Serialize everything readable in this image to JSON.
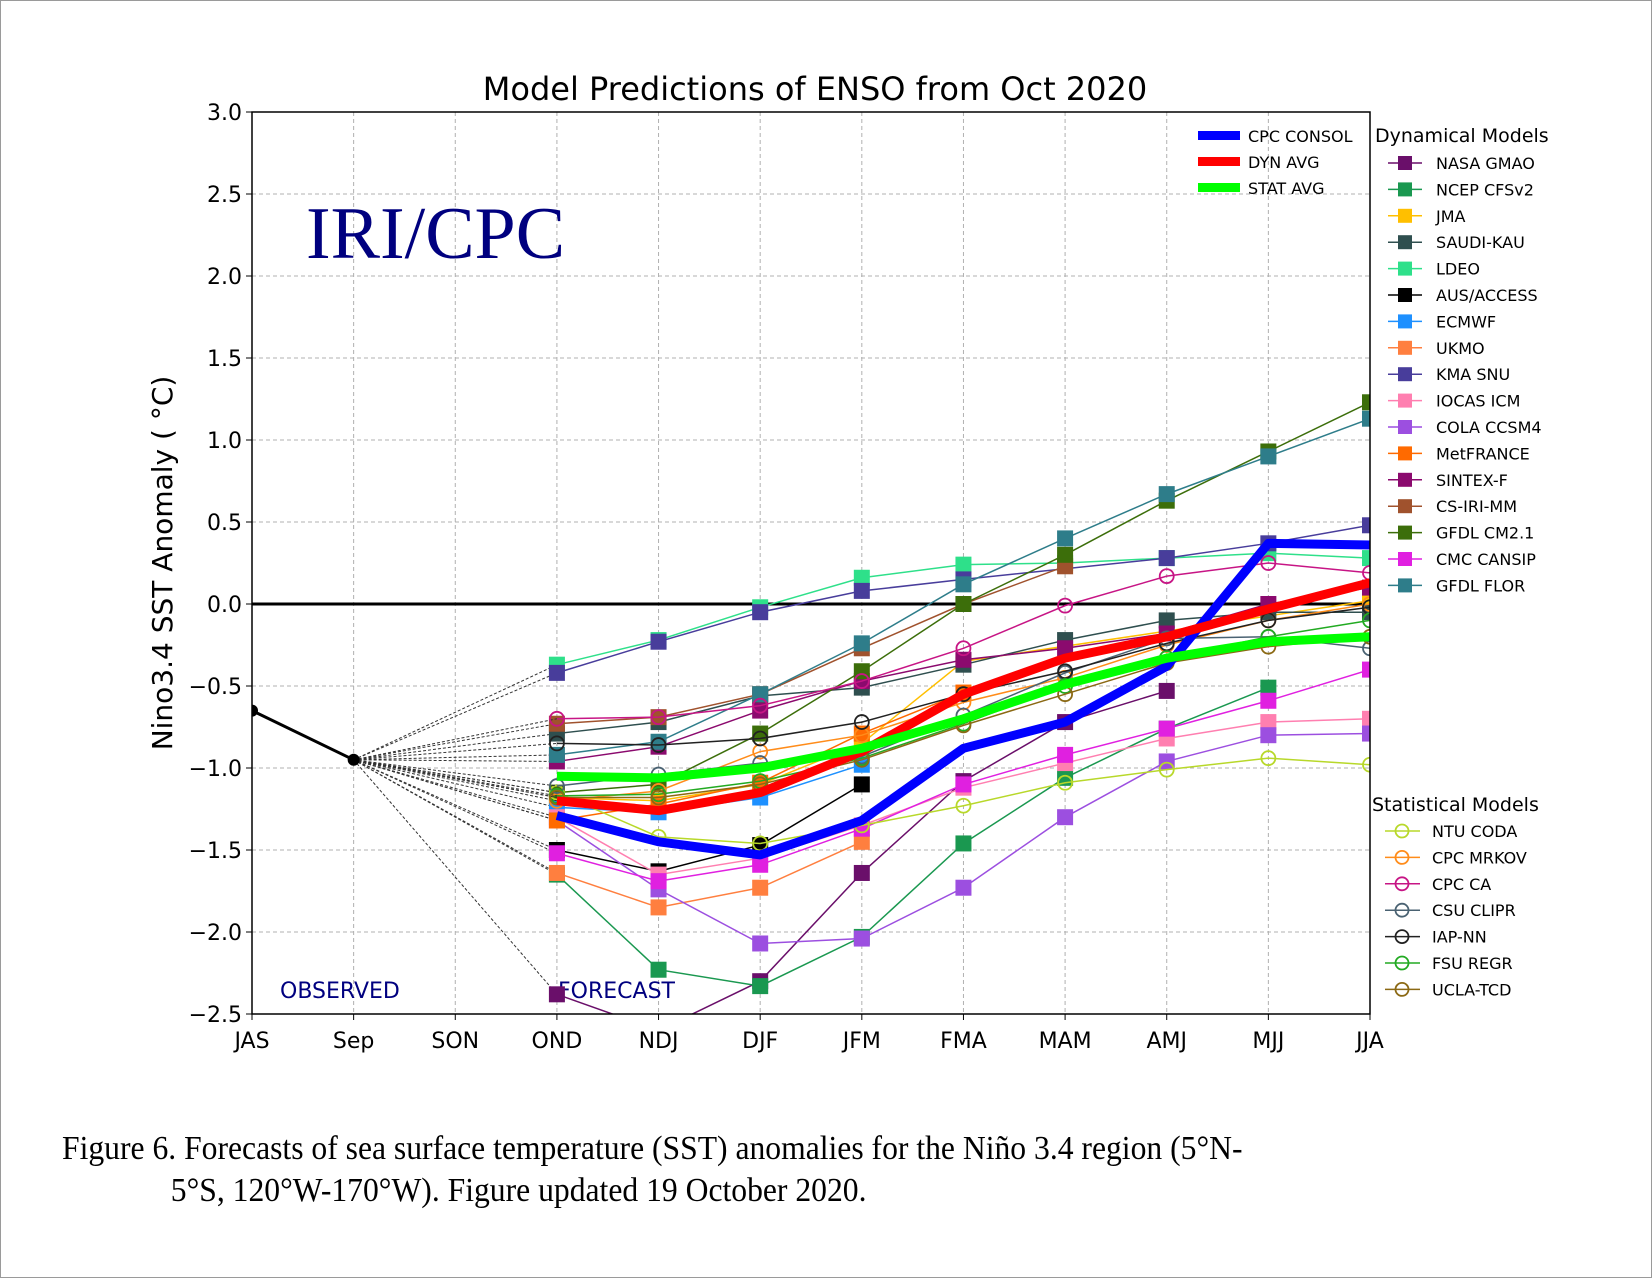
{
  "chart_data": {
    "type": "line",
    "title": "Model Predictions of ENSO from Oct 2020",
    "xlabel": "",
    "ylabel": "Nino3.4 SST Anomaly ( °C)",
    "x": [
      "JAS",
      "Sep",
      "SON",
      "OND",
      "NDJ",
      "DJF",
      "JFM",
      "FMA",
      "MAM",
      "AMJ",
      "MJJ",
      "JJA"
    ],
    "ylim": [
      -2.5,
      3.0
    ],
    "yticks": [
      -2.5,
      -2.0,
      -1.5,
      -1.0,
      -0.5,
      0.0,
      0.5,
      1.0,
      1.5,
      2.0,
      2.5,
      3.0
    ],
    "ytick_labels": [
      "−2.5",
      "−2.0",
      "−1.5",
      "−1.0",
      "−0.5",
      "0.0",
      "0.5",
      "1.0",
      "1.5",
      "2.0",
      "2.5",
      "3.0"
    ],
    "grid": true,
    "zero_line": true,
    "annotations": {
      "watermark": "IRI/CPC",
      "observed": "OBSERVED",
      "forecast": "FORECAST"
    },
    "observed": {
      "name": "Observed",
      "x": [
        "JAS",
        "Sep"
      ],
      "values": [
        -0.65,
        -0.95
      ],
      "color": "#000000"
    },
    "forecast_start": "Sep",
    "forecast_x": [
      "OND",
      "NDJ",
      "DJF",
      "JFM",
      "FMA",
      "MAM",
      "AMJ",
      "MJJ",
      "JJA"
    ],
    "averages": [
      {
        "name": "CPC CONSOL",
        "color": "#0000ff",
        "values": [
          -1.29,
          -1.45,
          -1.53,
          -1.32,
          -0.88,
          -0.72,
          -0.38,
          0.37,
          0.36
        ]
      },
      {
        "name": "DYN AVG",
        "color": "#ff0000",
        "values": [
          -1.2,
          -1.26,
          -1.15,
          -0.9,
          -0.55,
          -0.33,
          -0.2,
          -0.03,
          0.13
        ]
      },
      {
        "name": "STAT AVG",
        "color": "#00ff00",
        "values": [
          -1.05,
          -1.06,
          -1.0,
          -0.88,
          -0.7,
          -0.49,
          -0.33,
          -0.23,
          -0.2
        ]
      }
    ],
    "dynamical_title": "Dynamical Models",
    "dynamical": [
      {
        "name": "NASA GMAO",
        "color": "#6a0f6a",
        "values": [
          -2.38,
          -2.6,
          -2.3,
          -1.64,
          -1.08,
          -0.72,
          -0.53,
          null,
          null
        ]
      },
      {
        "name": "NCEP CFSv2",
        "color": "#1a9850",
        "values": [
          -1.65,
          -2.23,
          -2.33,
          -2.03,
          -1.46,
          -1.06,
          -0.76,
          -0.51,
          null
        ]
      },
      {
        "name": "JMA",
        "color": "#ffbf00",
        "values": [
          -1.18,
          -1.2,
          -1.1,
          -0.85,
          -0.35,
          null,
          null,
          null,
          0.02
        ]
      },
      {
        "name": "SAUDI-KAU",
        "color": "#2f4f4f",
        "values": [
          -0.79,
          -0.72,
          -0.56,
          -0.51,
          -0.37,
          -0.22,
          -0.1,
          -0.05,
          -0.05
        ]
      },
      {
        "name": "LDEO",
        "color": "#2ee08a",
        "values": [
          -0.37,
          -0.22,
          -0.02,
          0.16,
          0.24,
          0.25,
          0.28,
          0.31,
          0.28
        ]
      },
      {
        "name": "AUS/ACCESS",
        "color": "#000000",
        "values": [
          -1.5,
          -1.63,
          -1.47,
          -1.1,
          null,
          null,
          null,
          null,
          null
        ]
      },
      {
        "name": "ECMWF",
        "color": "#1e90ff",
        "values": [
          -1.24,
          -1.27,
          -1.18,
          -0.98,
          null,
          null,
          null,
          null,
          null
        ]
      },
      {
        "name": "UKMO",
        "color": "#ff7f3f",
        "values": [
          -1.64,
          -1.85,
          -1.73,
          -1.45,
          null,
          null,
          null,
          null,
          null
        ]
      },
      {
        "name": "KMA SNU",
        "color": "#483d9b",
        "values": [
          -0.42,
          -0.23,
          -0.05,
          0.08,
          0.15,
          null,
          0.28,
          0.37,
          0.48
        ]
      },
      {
        "name": "IOCAS ICM",
        "color": "#ff7fb0",
        "values": [
          -1.3,
          -1.65,
          -1.55,
          -1.35,
          -1.12,
          -0.97,
          -0.82,
          -0.72,
          -0.7
        ]
      },
      {
        "name": "COLA CCSM4",
        "color": "#9c4fe0",
        "values": [
          -1.32,
          -1.74,
          -2.07,
          -2.04,
          -1.73,
          -1.3,
          -0.96,
          -0.8,
          -0.79
        ]
      },
      {
        "name": "MetFRANCE",
        "color": "#ff6a00",
        "values": [
          -1.32,
          -1.22,
          -1.09,
          -0.79,
          -0.54,
          null,
          null,
          null,
          null
        ]
      },
      {
        "name": "SINTEX-F",
        "color": "#8b0a6e",
        "values": [
          -0.96,
          -0.87,
          -0.65,
          -0.47,
          -0.34,
          -0.27,
          -0.18,
          0.0,
          0.1
        ]
      },
      {
        "name": "CS-IRI-MM",
        "color": "#a0522d",
        "values": [
          -0.73,
          -0.69,
          -0.55,
          -0.27,
          0.0,
          0.23,
          null,
          null,
          null
        ]
      },
      {
        "name": "GFDL CM2.1",
        "color": "#3c6e0a",
        "values": [
          -1.15,
          -1.1,
          -0.79,
          -0.41,
          0.0,
          0.3,
          0.63,
          0.93,
          1.23
        ]
      },
      {
        "name": "CMC CANSIP",
        "color": "#e020e0",
        "values": [
          -1.52,
          -1.69,
          -1.59,
          -1.37,
          -1.1,
          -0.92,
          -0.76,
          -0.59,
          -0.4
        ]
      },
      {
        "name": "GFDL FLOR",
        "color": "#2e7d8a",
        "values": [
          -0.92,
          -0.84,
          -0.55,
          -0.24,
          0.12,
          0.4,
          0.67,
          0.9,
          1.13
        ]
      }
    ],
    "statistical_title": "Statistical Models",
    "statistical": [
      {
        "name": "NTU CODA",
        "color": "#b8d82a",
        "values": [
          -1.15,
          -1.42,
          -1.46,
          -1.35,
          -1.23,
          -1.09,
          -1.01,
          -0.94,
          -0.98
        ]
      },
      {
        "name": "CPC MRKOV",
        "color": "#ff8c1a",
        "values": [
          -1.2,
          -1.14,
          -0.9,
          -0.8,
          -0.6,
          -0.45,
          -0.25,
          -0.1,
          0.0
        ]
      },
      {
        "name": "CPC CA",
        "color": "#c71585",
        "values": [
          -0.7,
          -0.69,
          -0.62,
          -0.47,
          -0.27,
          -0.01,
          0.17,
          0.25,
          0.19
        ]
      },
      {
        "name": "CSU CLIPR",
        "color": "#4a6272",
        "values": [
          -1.11,
          -1.04,
          -0.97,
          -0.93,
          -0.68,
          -0.42,
          -0.21,
          -0.2,
          -0.27
        ]
      },
      {
        "name": "IAP-NN",
        "color": "#222222",
        "values": [
          -0.85,
          -0.86,
          -0.82,
          -0.72,
          -0.55,
          -0.41,
          -0.24,
          -0.1,
          -0.02
        ]
      },
      {
        "name": "FSU REGR",
        "color": "#22aa22",
        "values": [
          -1.17,
          -1.16,
          -1.08,
          -0.94,
          -0.73,
          -0.5,
          -0.33,
          -0.2,
          -0.1
        ]
      },
      {
        "name": "UCLA-TCD",
        "color": "#8b6914",
        "values": [
          -1.18,
          -1.18,
          -1.1,
          -0.95,
          -0.74,
          -0.55,
          -0.36,
          -0.26,
          -0.2
        ]
      }
    ]
  },
  "caption": {
    "line1": "Figure  6. Forecasts of sea surface temperature (SST) anomalies  for the Niño 3.4 region (5°N-",
    "line2": "5°S, 120°W-170°W).  Figure  updated 19 October 2020."
  }
}
